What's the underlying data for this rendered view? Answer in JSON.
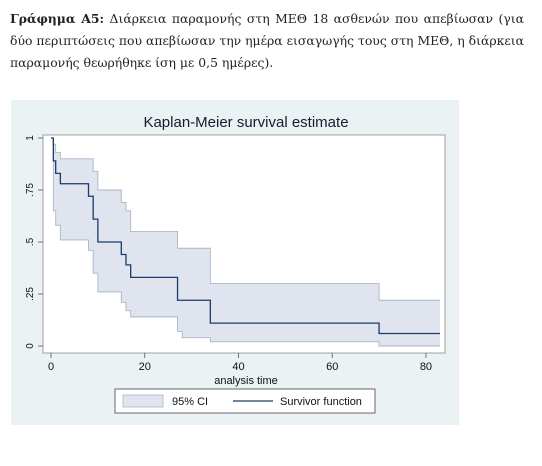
{
  "caption": {
    "label": "Γράφημα Α5:",
    "text": "Διάρκεια παραμονής στη ΜΕΘ 18 ασθενών που απεβίωσαν (για δύο περιπτώσεις που απεβίωσαν την ημέρα εισαγωγής τους στη ΜΕΘ, η διάρκεια παραμονής θεωρήθηκε ίση με 0,5 ημέρες)."
  },
  "colors": {
    "figure_background": "#eaf2f3",
    "plot_background": "#ffffff",
    "ci_fill": "#dfe4ef",
    "ci_line": "#a9b5c7",
    "survivor_line": "#1a3b6b"
  },
  "chart_data": {
    "type": "line",
    "title": "Kaplan-Meier survival estimate",
    "xlabel": "analysis time",
    "ylabel": "",
    "xlim": [
      0,
      83
    ],
    "ylim": [
      0,
      1
    ],
    "x_ticks": [
      0,
      20,
      40,
      60,
      80
    ],
    "x_tick_labels": [
      "0",
      "20",
      "40",
      "60",
      "80"
    ],
    "y_ticks": [
      0,
      0.25,
      0.5,
      0.75,
      1
    ],
    "y_tick_labels": [
      "0",
      ".25",
      ".5",
      ".75",
      "1"
    ],
    "grid": false,
    "legend": {
      "placement": "bottom",
      "entries": [
        "95% CI",
        "Survivor function"
      ]
    },
    "series": [
      {
        "name": "Survivor function",
        "kind": "step",
        "x": [
          0,
          0.5,
          1,
          2,
          8,
          9,
          10,
          15,
          16,
          17,
          20,
          27,
          28,
          34,
          70,
          83
        ],
        "y": [
          1,
          0.89,
          0.83,
          0.78,
          0.72,
          0.61,
          0.5,
          0.44,
          0.39,
          0.33,
          0.33,
          0.22,
          0.22,
          0.11,
          0.06,
          0.06
        ]
      },
      {
        "name": "95% CI",
        "kind": "step-band",
        "x": [
          0,
          0.5,
          1,
          2,
          8,
          9,
          10,
          15,
          16,
          17,
          20,
          27,
          28,
          34,
          70,
          83
        ],
        "upper": [
          1,
          0.97,
          0.93,
          0.9,
          0.9,
          0.84,
          0.75,
          0.69,
          0.65,
          0.55,
          0.55,
          0.47,
          0.47,
          0.3,
          0.22,
          0.22
        ],
        "lower": [
          1,
          0.65,
          0.58,
          0.51,
          0.46,
          0.35,
          0.26,
          0.21,
          0.17,
          0.14,
          0.14,
          0.07,
          0.04,
          0.02,
          0.0,
          0.0
        ]
      }
    ]
  }
}
